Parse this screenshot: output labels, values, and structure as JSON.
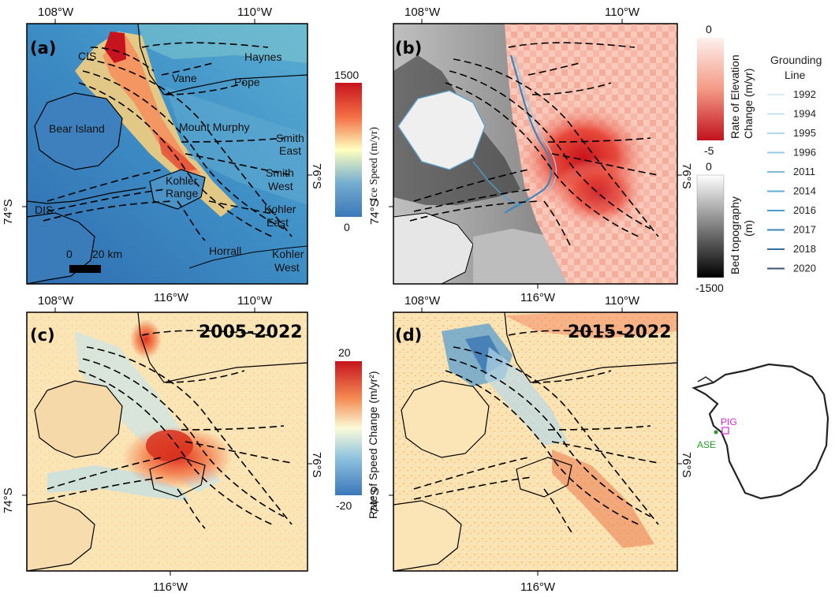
{
  "coordinates": {
    "lon_108": "108°W",
    "lon_110": "110°W",
    "lon_116": "116°W",
    "lat_76": "76°S",
    "lat_74": "74°S"
  },
  "panels": {
    "a": {
      "label": "(a)",
      "places": {
        "cis": "CIS",
        "dis": "DIS",
        "haynes": "Haynes",
        "vane": "Vane",
        "pope": "Pope",
        "bear_island": "Bear Island",
        "mount_murphy": "Mount Murphy",
        "smith_east_1": "Smith",
        "smith_east_2": "East",
        "smith_west_1": "Smith",
        "smith_west_2": "West",
        "kohler_range_1": "Kohler",
        "kohler_range_2": "Range",
        "kohler_east_1": "Kohler",
        "kohler_east_2": "East",
        "horrall": "Horrall",
        "kohler_west_1": "Kohler",
        "kohler_west_2": "West"
      },
      "scale_bar": {
        "start": "0",
        "end": "20 km"
      },
      "colorbar": {
        "title": "Ice Speed (m/yr)",
        "max": "1500",
        "min": "0"
      }
    },
    "b": {
      "label": "(b)",
      "colorbar_elev": {
        "title_1": "Rate of Elevation",
        "title_2": "Change (m/yr)",
        "max": "0",
        "min": "-5"
      },
      "colorbar_bed": {
        "title_1": "Bed topography",
        "title_2": "(m)",
        "max": "0",
        "min": "-1500"
      }
    },
    "c": {
      "label": "(c)",
      "period": "2005-2022",
      "colorbar": {
        "title": "Rate of Speed Change (m/yr²)",
        "max": "20",
        "min": "-20"
      }
    },
    "d": {
      "label": "(d)",
      "period": "2015-2022"
    }
  },
  "grounding_line_legend": {
    "title_1": "Grounding",
    "title_2": "Line",
    "years": [
      "1992",
      "1994",
      "1995",
      "1996",
      "2011",
      "2014",
      "2016",
      "2017",
      "2018",
      "2020"
    ],
    "colors": [
      "#d8ecf6",
      "#c3e1f1",
      "#afd6ec",
      "#98cae6",
      "#7cbbde",
      "#62acd6",
      "#4b9ccd",
      "#3a86bd",
      "#33709f",
      "#3f5170"
    ]
  },
  "inset": {
    "pig": "PIG",
    "ase": "ASE",
    "pig_color": "#e020e0",
    "ase_color": "#2a9a2a"
  },
  "colors": {
    "speed_low": "#2f7fc1",
    "speed_mid": "#ffffbf",
    "speed_high": "#d7301f",
    "elev_zero": "#fde8e0",
    "elev_min": "#cb181d",
    "bed_high": "#ffffff",
    "bed_low": "#000000"
  }
}
